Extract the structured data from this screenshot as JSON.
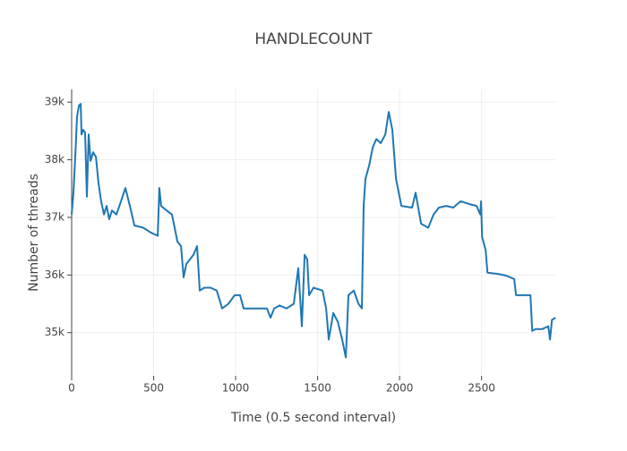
{
  "chart_data": {
    "type": "line",
    "title": "HANDLECOUNT",
    "x_label": "Time (0.5 second interval)",
    "y_label": "Number of threads",
    "xlim": [
      0,
      2950
    ],
    "ylim": [
      34250,
      39220
    ],
    "xticks": [
      0,
      500,
      1000,
      1500,
      2000,
      2500
    ],
    "yticks": [
      {
        "value": 35000,
        "label": "35k"
      },
      {
        "value": 36000,
        "label": "36k"
      },
      {
        "value": 37000,
        "label": "37k"
      },
      {
        "value": 38000,
        "label": "38k"
      },
      {
        "value": 39000,
        "label": "39k"
      }
    ],
    "grid": true,
    "series": [
      {
        "color": "#1f77b4",
        "x": [
          0,
          11,
          22,
          33,
          44,
          55,
          60,
          71,
          82,
          93,
          104,
          115,
          131,
          148,
          164,
          180,
          197,
          213,
          229,
          246,
          273,
          301,
          328,
          355,
          383,
          437,
          481,
          525,
          535,
          546,
          579,
          612,
          645,
          667,
          683,
          699,
          721,
          743,
          765,
          781,
          809,
          847,
          885,
          918,
          956,
          994,
          1027,
          1049,
          1120,
          1191,
          1213,
          1235,
          1268,
          1311,
          1355,
          1382,
          1404,
          1421,
          1437,
          1448,
          1475,
          1530,
          1552,
          1568,
          1596,
          1623,
          1650,
          1672,
          1688,
          1721,
          1749,
          1770,
          1781,
          1792,
          1814,
          1836,
          1858,
          1885,
          1913,
          1934,
          1956,
          1978,
          2011,
          2076,
          2098,
          2131,
          2175,
          2207,
          2240,
          2284,
          2328,
          2372,
          2426,
          2470,
          2492,
          2497,
          2503,
          2525,
          2536,
          2596,
          2650,
          2699,
          2710,
          2759,
          2798,
          2809,
          2830,
          2869,
          2907,
          2918,
          2929,
          2951
        ],
        "values": [
          37050,
          37430,
          38050,
          38750,
          38940,
          38970,
          38440,
          38520,
          38470,
          37360,
          38440,
          37980,
          38130,
          38050,
          37590,
          37280,
          37050,
          37200,
          36970,
          37120,
          37050,
          37280,
          37510,
          37200,
          36860,
          36820,
          36740,
          36680,
          37510,
          37200,
          37120,
          37050,
          36580,
          36500,
          35960,
          36190,
          36270,
          36350,
          36500,
          35730,
          35780,
          35780,
          35730,
          35420,
          35500,
          35650,
          35650,
          35420,
          35420,
          35420,
          35260,
          35420,
          35470,
          35420,
          35500,
          36120,
          35110,
          36350,
          36270,
          35650,
          35780,
          35730,
          35420,
          34880,
          35340,
          35190,
          34880,
          34570,
          35650,
          35730,
          35500,
          35420,
          37200,
          37670,
          37900,
          38210,
          38360,
          38290,
          38440,
          38830,
          38520,
          37670,
          37200,
          37170,
          37430,
          36890,
          36820,
          37050,
          37170,
          37200,
          37170,
          37280,
          37230,
          37200,
          37050,
          37280,
          36660,
          36430,
          36040,
          36020,
          35990,
          35930,
          35650,
          35650,
          35650,
          35030,
          35060,
          35060,
          35110,
          34880,
          35220,
          35260
        ]
      }
    ]
  }
}
